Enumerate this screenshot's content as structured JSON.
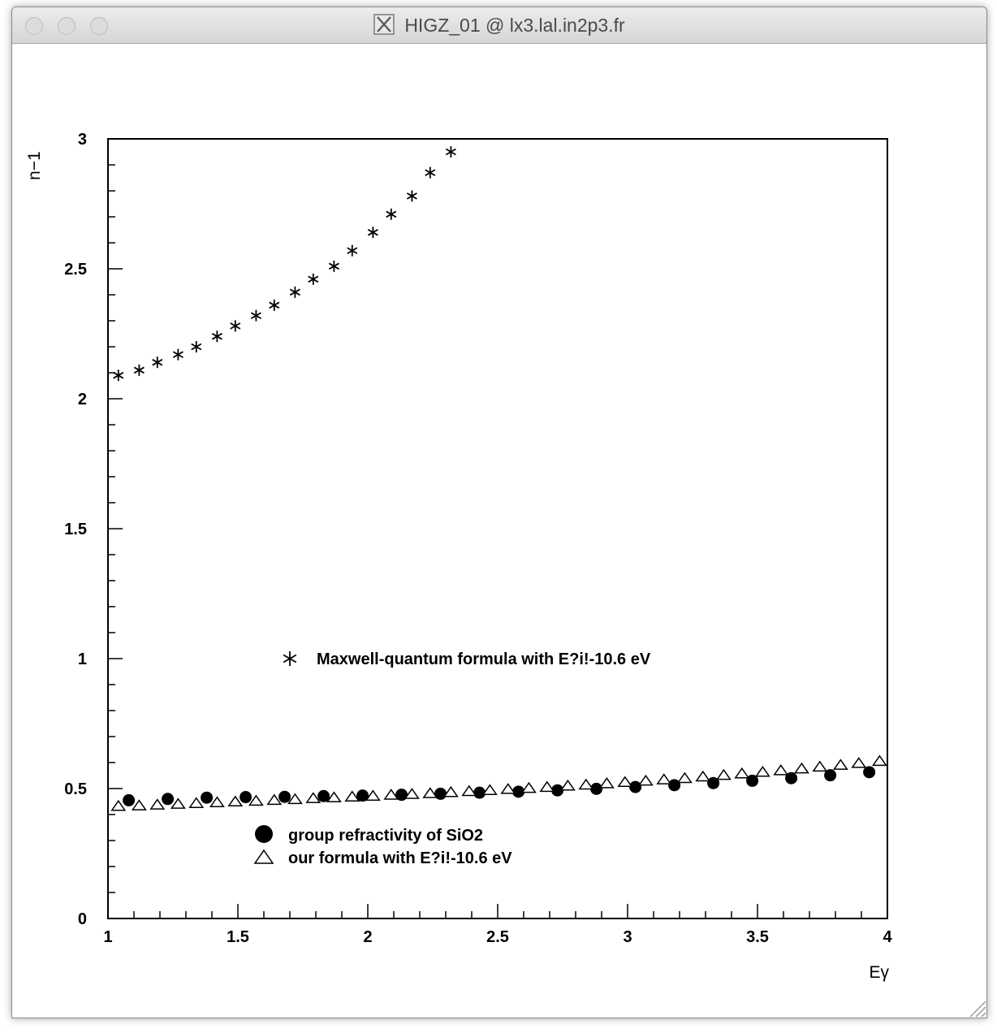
{
  "window": {
    "title": "HIGZ_01 @ lx3.lal.in2p3.fr"
  },
  "chart_data": {
    "type": "scatter",
    "xlabel": "Eγ",
    "ylabel": "n−1",
    "xlim": [
      1,
      4
    ],
    "ylim": [
      0,
      3
    ],
    "x_ticks": [
      "1",
      "1.5",
      "2",
      "2.5",
      "3",
      "3.5",
      "4"
    ],
    "y_ticks": [
      "0",
      "0.5",
      "1",
      "1.5",
      "2",
      "2.5",
      "3"
    ],
    "grid": false,
    "series": [
      {
        "name": "Maxwell-quantum formula with E?i!-10.6 eV",
        "marker": "star",
        "x": [
          1.04,
          1.12,
          1.19,
          1.27,
          1.34,
          1.42,
          1.49,
          1.57,
          1.64,
          1.72,
          1.79,
          1.87,
          1.94,
          2.02,
          2.09,
          2.17,
          2.24,
          2.32
        ],
        "y": [
          2.09,
          2.11,
          2.14,
          2.17,
          2.2,
          2.24,
          2.28,
          2.32,
          2.36,
          2.41,
          2.46,
          2.51,
          2.57,
          2.64,
          2.71,
          2.78,
          2.87,
          2.95
        ]
      },
      {
        "name": "group refractivity of SiO2",
        "marker": "filled-circle",
        "x": [
          1.08,
          1.23,
          1.38,
          1.53,
          1.68,
          1.83,
          1.98,
          2.13,
          2.28,
          2.43,
          2.58,
          2.73,
          2.88,
          3.03,
          3.18,
          3.33,
          3.48,
          3.63,
          3.78,
          3.93
        ],
        "y": [
          0.455,
          0.46,
          0.465,
          0.467,
          0.468,
          0.471,
          0.473,
          0.476,
          0.48,
          0.484,
          0.488,
          0.493,
          0.499,
          0.506,
          0.513,
          0.521,
          0.53,
          0.54,
          0.551,
          0.563
        ]
      },
      {
        "name": "our formula with E?i!-10.6 eV",
        "marker": "open-triangle",
        "x": [
          1.04,
          1.12,
          1.19,
          1.27,
          1.34,
          1.42,
          1.49,
          1.57,
          1.64,
          1.72,
          1.79,
          1.87,
          1.94,
          2.02,
          2.09,
          2.17,
          2.24,
          2.32,
          2.39,
          2.47,
          2.54,
          2.62,
          2.69,
          2.77,
          2.84,
          2.92,
          2.99,
          3.07,
          3.14,
          3.22,
          3.29,
          3.37,
          3.44,
          3.52,
          3.59,
          3.67,
          3.74,
          3.82,
          3.89,
          3.97
        ],
        "y": [
          0.43,
          0.432,
          0.435,
          0.438,
          0.441,
          0.444,
          0.447,
          0.45,
          0.453,
          0.456,
          0.46,
          0.463,
          0.466,
          0.469,
          0.473,
          0.476,
          0.479,
          0.483,
          0.487,
          0.491,
          0.495,
          0.499,
          0.503,
          0.508,
          0.512,
          0.517,
          0.522,
          0.527,
          0.532,
          0.537,
          0.543,
          0.549,
          0.555,
          0.561,
          0.567,
          0.574,
          0.581,
          0.588,
          0.595,
          0.603
        ]
      }
    ],
    "legends": [
      {
        "series": 0,
        "label": "Maxwell-quantum formula with E?i!-10.6 eV"
      },
      {
        "series": 1,
        "label": "group refractivity of SiO2"
      },
      {
        "series": 2,
        "label": "our formula with E?i!-10.6 eV"
      }
    ]
  }
}
